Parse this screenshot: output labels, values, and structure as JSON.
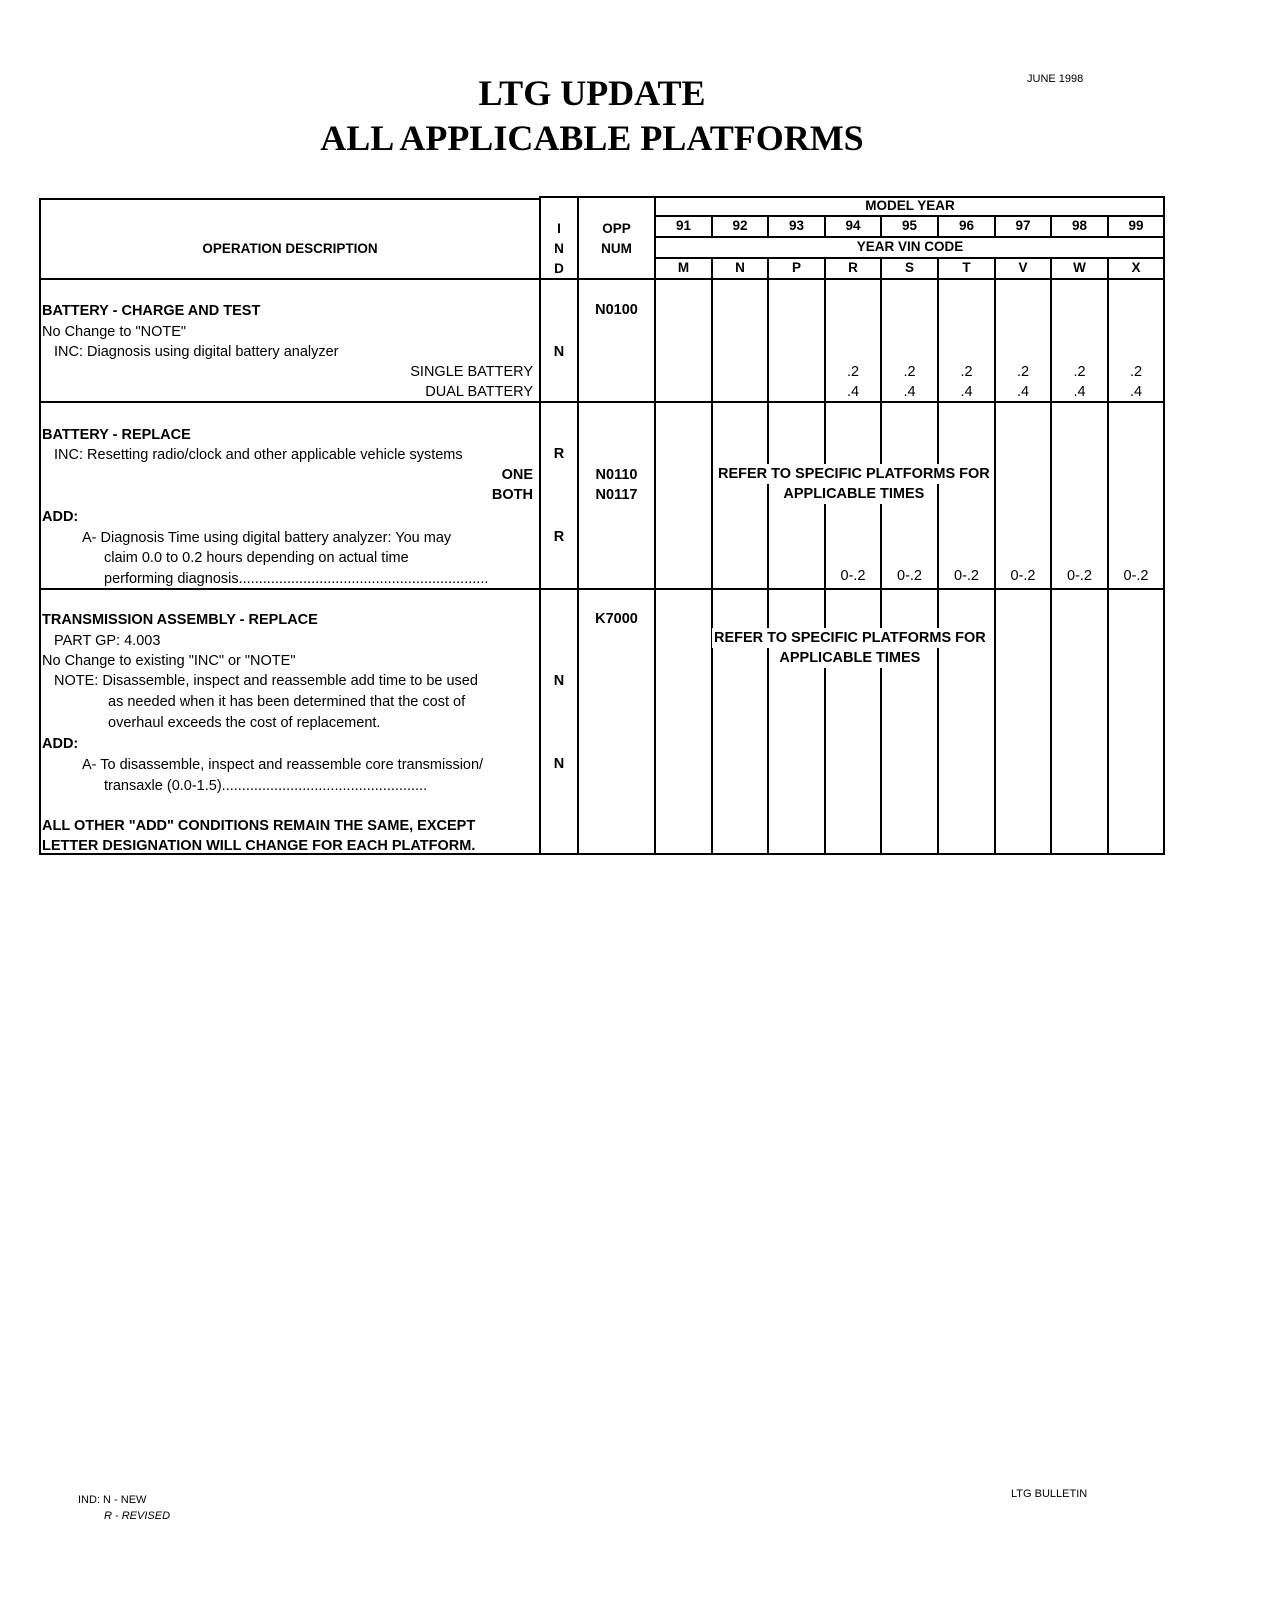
{
  "header": {
    "date": "JUNE 1998",
    "title_line1": "LTG  UPDATE",
    "title_line2": "ALL APPLICABLE PLATFORMS"
  },
  "table": {
    "col_desc": "OPERATION DESCRIPTION",
    "col_ind": [
      "I",
      "N",
      "D"
    ],
    "col_opp": [
      "OPP",
      "NUM"
    ],
    "model_year_label": "MODEL  YEAR",
    "years": [
      "91",
      "92",
      "93",
      "94",
      "95",
      "96",
      "97",
      "98",
      "99"
    ],
    "vin_label": "YEAR  VIN  CODE",
    "vin_codes": [
      "M",
      "N",
      "P",
      "R",
      "S",
      "T",
      "V",
      "W",
      "X"
    ],
    "sections": [
      {
        "title": "BATTERY - CHARGE AND TEST",
        "lines": [
          "No Change to \"NOTE\"",
          "INC: Diagnosis using digital battery analyzer",
          "SINGLE BATTERY",
          "DUAL BATTERY"
        ],
        "ind": "N",
        "opp": "N0100",
        "single": [
          ".2",
          ".2",
          ".2",
          ".2",
          ".2",
          ".2"
        ],
        "dual": [
          ".4",
          ".4",
          ".4",
          ".4",
          ".4",
          ".4"
        ]
      },
      {
        "title": "BATTERY - REPLACE",
        "lines": [
          "INC: Resetting radio/clock and other applicable vehicle systems",
          "ONE",
          "BOTH",
          "ADD:",
          "A- Diagnosis Time using digital battery analyzer: You may",
          "claim 0.0 to 0.2 hours depending on actual time",
          "performing diagnosis.............................................................."
        ],
        "ind": [
          "R",
          "R"
        ],
        "opp": [
          "N0110",
          "N0117"
        ],
        "refer": [
          "REFER TO SPECIFIC PLATFORMS FOR",
          "APPLICABLE TIMES"
        ],
        "add_times": [
          "0-.2",
          "0-.2",
          "0-.2",
          "0-.2",
          "0-.2",
          "0-.2"
        ]
      },
      {
        "title": "TRANSMISSION ASSEMBLY - REPLACE",
        "lines": [
          "PART GP: 4.003",
          "No Change to existing \"INC\" or \"NOTE\"",
          "NOTE: Disassemble, inspect and reassemble add time to be used",
          "as needed when it has been determined that the cost of",
          "overhaul exceeds the cost of replacement.",
          "ADD:",
          "A- To disassemble, inspect and reassemble core transmission/",
          "transaxle (0.0-1.5)...................................................",
          "ALL OTHER \"ADD\" CONDITIONS REMAIN THE SAME, EXCEPT",
          "LETTER DESIGNATION WILL CHANGE FOR EACH PLATFORM."
        ],
        "ind": [
          "N",
          "N"
        ],
        "opp": "K7000",
        "refer": [
          "REFER TO SPECIFIC PLATFORMS FOR",
          "APPLICABLE TIMES"
        ]
      }
    ]
  },
  "footer": {
    "legend_line1": "IND: N - NEW",
    "legend_line2": "R - REVISED",
    "bulletin": "LTG  BULLETIN"
  }
}
